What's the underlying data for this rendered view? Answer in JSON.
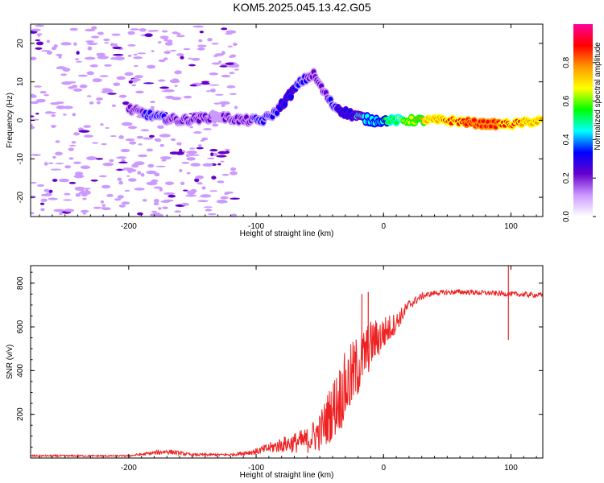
{
  "title": "KOM5.2025.045.13.42.G05",
  "chart_data": [
    {
      "type": "heatmap",
      "panel": "spectrogram",
      "xlabel": "Height of straight line (km)",
      "ylabel": "Frequency (Hz)",
      "xlim": [
        -277,
        125
      ],
      "ylim": [
        -25,
        25
      ],
      "x_ticks": [
        "-200",
        "-100",
        "0",
        "100"
      ],
      "y_ticks": [
        "20",
        "10",
        "0",
        "-10",
        "-20"
      ],
      "colorbar": {
        "label": "Normalized spectral amplitude",
        "range": [
          0.0,
          1.0
        ],
        "ticks": [
          "0.0",
          "0.2",
          "0.4",
          "0.6",
          "0.8"
        ],
        "colors": [
          "#ffffff",
          "#cc99ff",
          "#6600cc",
          "#0000ff",
          "#00ffff",
          "#00ff00",
          "#ffff00",
          "#ff9900",
          "#ff0000",
          "#ff0099"
        ]
      },
      "ridge": {
        "x": [
          -200,
          -180,
          -160,
          -130,
          -110,
          -95,
          -85,
          -75,
          -65,
          -55,
          -48,
          -40,
          -30,
          -20,
          -10,
          0,
          20,
          50,
          80,
          100,
          125
        ],
        "y": [
          3,
          1,
          0,
          1,
          0,
          0,
          2,
          6,
          10,
          12,
          8,
          4,
          2,
          1,
          0,
          0,
          0,
          0,
          -1,
          -1,
          0
        ],
        "amplitude": [
          0.25,
          0.3,
          0.25,
          0.15,
          0.25,
          0.3,
          0.3,
          0.35,
          0.3,
          0.25,
          0.25,
          0.3,
          0.35,
          0.4,
          0.45,
          0.5,
          0.7,
          0.85,
          0.9,
          0.85,
          0.8
        ]
      }
    },
    {
      "type": "line",
      "panel": "snr",
      "xlabel": "Height of straight line (km)",
      "ylabel": "SNR (v/v)",
      "xlim": [
        -277,
        125
      ],
      "ylim": [
        0,
        880
      ],
      "x_ticks": [
        "-200",
        "-100",
        "0",
        "100"
      ],
      "y_ticks": [
        "200",
        "400",
        "600",
        "800"
      ],
      "series": [
        {
          "color": "#ee2222",
          "envelope_x": [
            -277,
            -200,
            -170,
            -150,
            -120,
            -100,
            -80,
            -60,
            -50,
            -40,
            -30,
            -20,
            -10,
            0,
            10,
            20,
            30,
            40,
            60,
            80,
            100,
            125
          ],
          "envelope_y": [
            10,
            10,
            30,
            15,
            15,
            30,
            60,
            80,
            120,
            220,
            320,
            420,
            520,
            570,
            620,
            700,
            740,
            755,
            760,
            755,
            750,
            745
          ],
          "noise_amplitude": [
            4,
            4,
            12,
            6,
            6,
            15,
            35,
            60,
            90,
            140,
            170,
            150,
            110,
            80,
            45,
            25,
            15,
            12,
            12,
            12,
            12,
            12
          ],
          "spikes": [
            {
              "x": -17,
              "y": 750
            },
            {
              "x": -12,
              "y": 760
            },
            {
              "x": 98,
              "y": 880
            },
            {
              "x": 98,
              "y": 540
            }
          ]
        }
      ]
    }
  ]
}
